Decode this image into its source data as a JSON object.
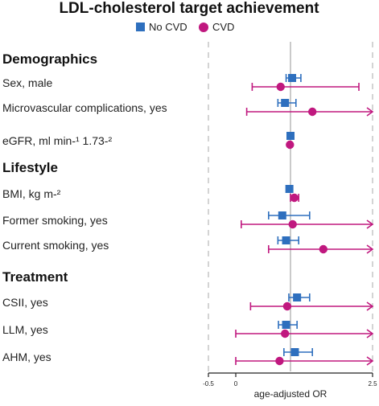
{
  "chart_data": {
    "type": "forest",
    "title": "LDL-cholesterol target achievement",
    "xlabel": "age-adjusted OR",
    "xlim": [
      -0.5,
      2.5
    ],
    "x_ticks": [
      "-0.5",
      "0",
      "2.5"
    ],
    "reference_lines": [
      {
        "x": -0.5,
        "style": "dashed"
      },
      {
        "x": 1,
        "style": "solid"
      },
      {
        "x": 2.5,
        "style": "dashed"
      }
    ],
    "legend_position": "top",
    "series": [
      {
        "name": "No CVD",
        "color": "#2e6fbe",
        "marker": "square"
      },
      {
        "name": "CVD",
        "color": "#c0187f",
        "marker": "circle"
      }
    ],
    "rows": [
      {
        "type": "header",
        "label": "Demographics"
      },
      {
        "type": "item",
        "label": "Sex, male",
        "no_cvd": {
          "or": 1.03,
          "lo": 0.92,
          "hi": 1.19
        },
        "cvd": {
          "or": 0.82,
          "lo": 0.3,
          "hi": 2.25
        }
      },
      {
        "type": "item",
        "label": "Microvascular complications, yes",
        "no_cvd": {
          "or": 0.9,
          "lo": 0.77,
          "hi": 1.1
        },
        "cvd": {
          "or": 1.4,
          "lo": 0.2,
          "hi": 2.5,
          "hi_truncated": true
        }
      },
      {
        "type": "item",
        "label": "eGFR, ml min-¹ 1.73-²",
        "no_cvd": {
          "or": 1.0,
          "lo": 0.99,
          "hi": 1.01
        },
        "cvd": {
          "or": 0.99,
          "lo": 0.98,
          "hi": 1.0
        }
      },
      {
        "type": "header",
        "label": "Lifestyle"
      },
      {
        "type": "item",
        "label": "BMI, kg m-²",
        "no_cvd": {
          "or": 0.98,
          "lo": 0.96,
          "hi": 1.0
        },
        "cvd": {
          "or": 1.07,
          "lo": 1.0,
          "hi": 1.15
        }
      },
      {
        "type": "item",
        "label": "Former smoking, yes",
        "no_cvd": {
          "or": 0.85,
          "lo": 0.6,
          "hi": 1.35
        },
        "cvd": {
          "or": 1.04,
          "lo": 0.1,
          "hi": 2.5,
          "hi_truncated": true
        }
      },
      {
        "type": "item",
        "label": "Current smoking, yes",
        "no_cvd": {
          "or": 0.92,
          "lo": 0.77,
          "hi": 1.15
        },
        "cvd": {
          "or": 1.6,
          "lo": 0.6,
          "hi": 2.5,
          "hi_truncated": true
        }
      },
      {
        "type": "header",
        "label": "Treatment"
      },
      {
        "type": "item",
        "label": "CSII, yes",
        "no_cvd": {
          "or": 1.12,
          "lo": 0.97,
          "hi": 1.35
        },
        "cvd": {
          "or": 0.94,
          "lo": 0.27,
          "hi": 2.5,
          "hi_truncated": true
        }
      },
      {
        "type": "item",
        "label": "LLM, yes",
        "no_cvd": {
          "or": 0.92,
          "lo": 0.78,
          "hi": 1.12
        },
        "cvd": {
          "or": 0.9,
          "lo": 0.0,
          "hi": 2.5,
          "hi_truncated": true
        }
      },
      {
        "type": "item",
        "label": "AHM, yes",
        "no_cvd": {
          "or": 1.08,
          "lo": 0.88,
          "hi": 1.4
        },
        "cvd": {
          "or": 0.8,
          "lo": 0.0,
          "hi": 2.5,
          "hi_truncated": true
        }
      }
    ]
  }
}
